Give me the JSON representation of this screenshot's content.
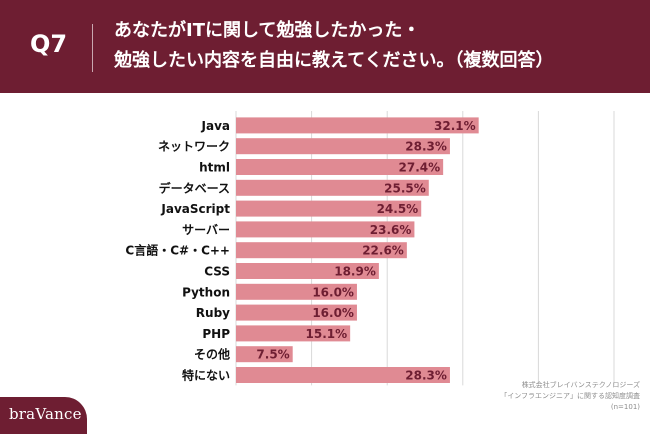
{
  "header": {
    "question_label": "Q7",
    "title_line1": "あなたがITに関して勉強したかった・",
    "title_line2": "勉強したい内容を自由に教えてください。（複数回答）"
  },
  "source": {
    "line1": "株式会社ブレイバンステクノロジーズ",
    "line2": "「インフラエンジニア」に関する認知度調査",
    "line3": "(n=101)"
  },
  "brand": {
    "logo_text": "braVance"
  },
  "colors": {
    "background": "#6e1e32",
    "bar": "#e08a93",
    "bar_label": "#6e1e32",
    "gridline": "#d9d9d9"
  },
  "chart_data": {
    "type": "bar",
    "orientation": "horizontal",
    "categories": [
      "Java",
      "ネットワーク",
      "html",
      "データベース",
      "JavaScript",
      "サーバー",
      "C言語・C#・C++",
      "CSS",
      "Python",
      "Ruby",
      "PHP",
      "その他",
      "特にない"
    ],
    "values": [
      32.1,
      28.3,
      27.4,
      25.5,
      24.5,
      23.6,
      22.6,
      18.9,
      16.0,
      16.0,
      15.1,
      7.5,
      28.3
    ],
    "value_labels": [
      "32.1%",
      "28.3%",
      "27.4%",
      "25.5%",
      "24.5%",
      "23.6%",
      "22.6%",
      "18.9%",
      "16.0%",
      "16.0%",
      "15.1%",
      "7.5%",
      "28.3%"
    ],
    "xlim": [
      0,
      50
    ],
    "grid": true
  }
}
